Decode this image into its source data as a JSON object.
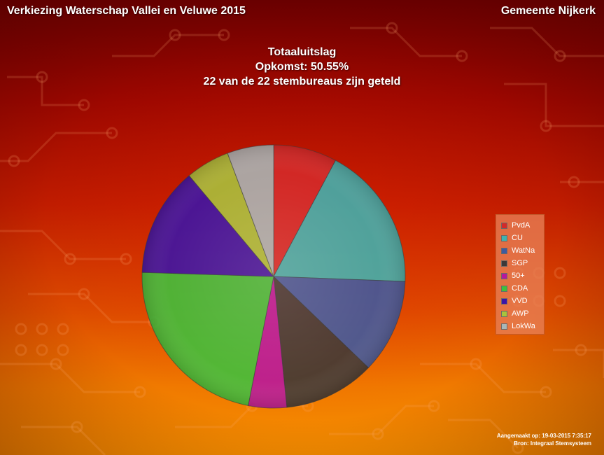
{
  "header": {
    "election_title": "Verkiezing Waterschap Vallei en Veluwe 2015",
    "municipality": "Gemeente Nijkerk"
  },
  "titles": {
    "line1": "Totaaluitslag",
    "line2": "Opkomst: 50.55%",
    "line3": "22 van de 22 stembureaus zijn geteld"
  },
  "footer": {
    "created": "Aangemaakt op: 19-03-2015 7:35:17",
    "source": "Bron: Integraal Stemsysteem"
  },
  "chart_data": {
    "type": "pie",
    "title": "Totaaluitslag",
    "legend_position": "right",
    "slices": [
      {
        "label": "PvdA",
        "value": 7.8,
        "color": "#d42a2a"
      },
      {
        "label": "CU",
        "value": 17.8,
        "color": "#3fb3b0"
      },
      {
        "label": "WatNa",
        "value": 11.6,
        "color": "#3e5aa0"
      },
      {
        "label": "SGP",
        "value": 11.2,
        "color": "#3b3838"
      },
      {
        "label": "50+",
        "value": 4.7,
        "color": "#b7179e"
      },
      {
        "label": "CDA",
        "value": 22.4,
        "color": "#3ec13e"
      },
      {
        "label": "VVD",
        "value": 13.4,
        "color": "#3a14a8"
      },
      {
        "label": "AWP",
        "value": 5.4,
        "color": "#a8c43c"
      },
      {
        "label": "LokWa",
        "value": 5.7,
        "color": "#a9b7b7"
      }
    ]
  }
}
